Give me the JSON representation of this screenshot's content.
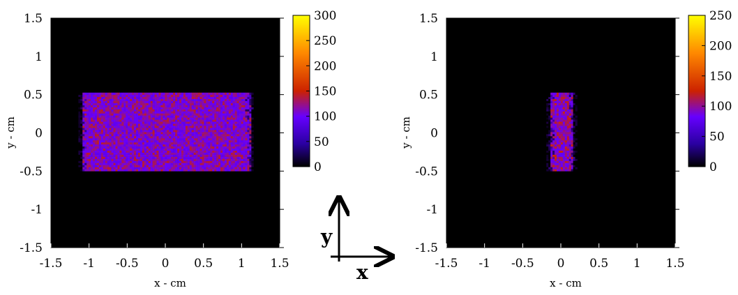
{
  "chart_data": [
    {
      "type": "heatmap",
      "title": "",
      "xlabel": "x - cm",
      "ylabel": "y - cm",
      "xlim": [
        -1.5,
        1.5
      ],
      "ylim": [
        -1.5,
        1.5
      ],
      "x_ticks": [
        "-1.5",
        "-1",
        "-0.5",
        "0",
        "0.5",
        "1",
        "1.5"
      ],
      "y_ticks": [
        "-1.5",
        "-1",
        "-0.5",
        "0",
        "0.5",
        "1",
        "1.5"
      ],
      "nonzero_region": {
        "x": [
          -1.1,
          1.1
        ],
        "y": [
          -0.5,
          0.5
        ]
      },
      "typical_counts": [
        70,
        140
      ],
      "colorbar": {
        "min": 0,
        "max": 300,
        "ticks": [
          "0",
          "50",
          "100",
          "150",
          "200",
          "250",
          "300"
        ]
      },
      "colormap": [
        "#000000",
        "#6600ff",
        "#cc2200",
        "#ff8800",
        "#ffff00"
      ]
    },
    {
      "type": "heatmap",
      "title": "",
      "xlabel": "x - cm",
      "ylabel": "y - cm",
      "xlim": [
        -1.5,
        1.5
      ],
      "ylim": [
        -1.5,
        1.5
      ],
      "x_ticks": [
        "-1.5",
        "-1",
        "-0.5",
        "0",
        "0.5",
        "1",
        "1.5"
      ],
      "y_ticks": [
        "-1.5",
        "-1",
        "-0.5",
        "0",
        "0.5",
        "1",
        "1.5"
      ],
      "nonzero_region": {
        "x": [
          -0.15,
          0.15
        ],
        "y": [
          -0.5,
          0.5
        ]
      },
      "typical_counts": [
        60,
        130
      ],
      "colorbar": {
        "min": 0,
        "max": 250,
        "ticks": [
          "0",
          "50",
          "100",
          "150",
          "200",
          "250"
        ]
      },
      "colormap": [
        "#000000",
        "#6600ff",
        "#cc2200",
        "#ff8800",
        "#ffff00"
      ]
    }
  ],
  "orientation": {
    "y_label": "y",
    "x_label": "x"
  }
}
